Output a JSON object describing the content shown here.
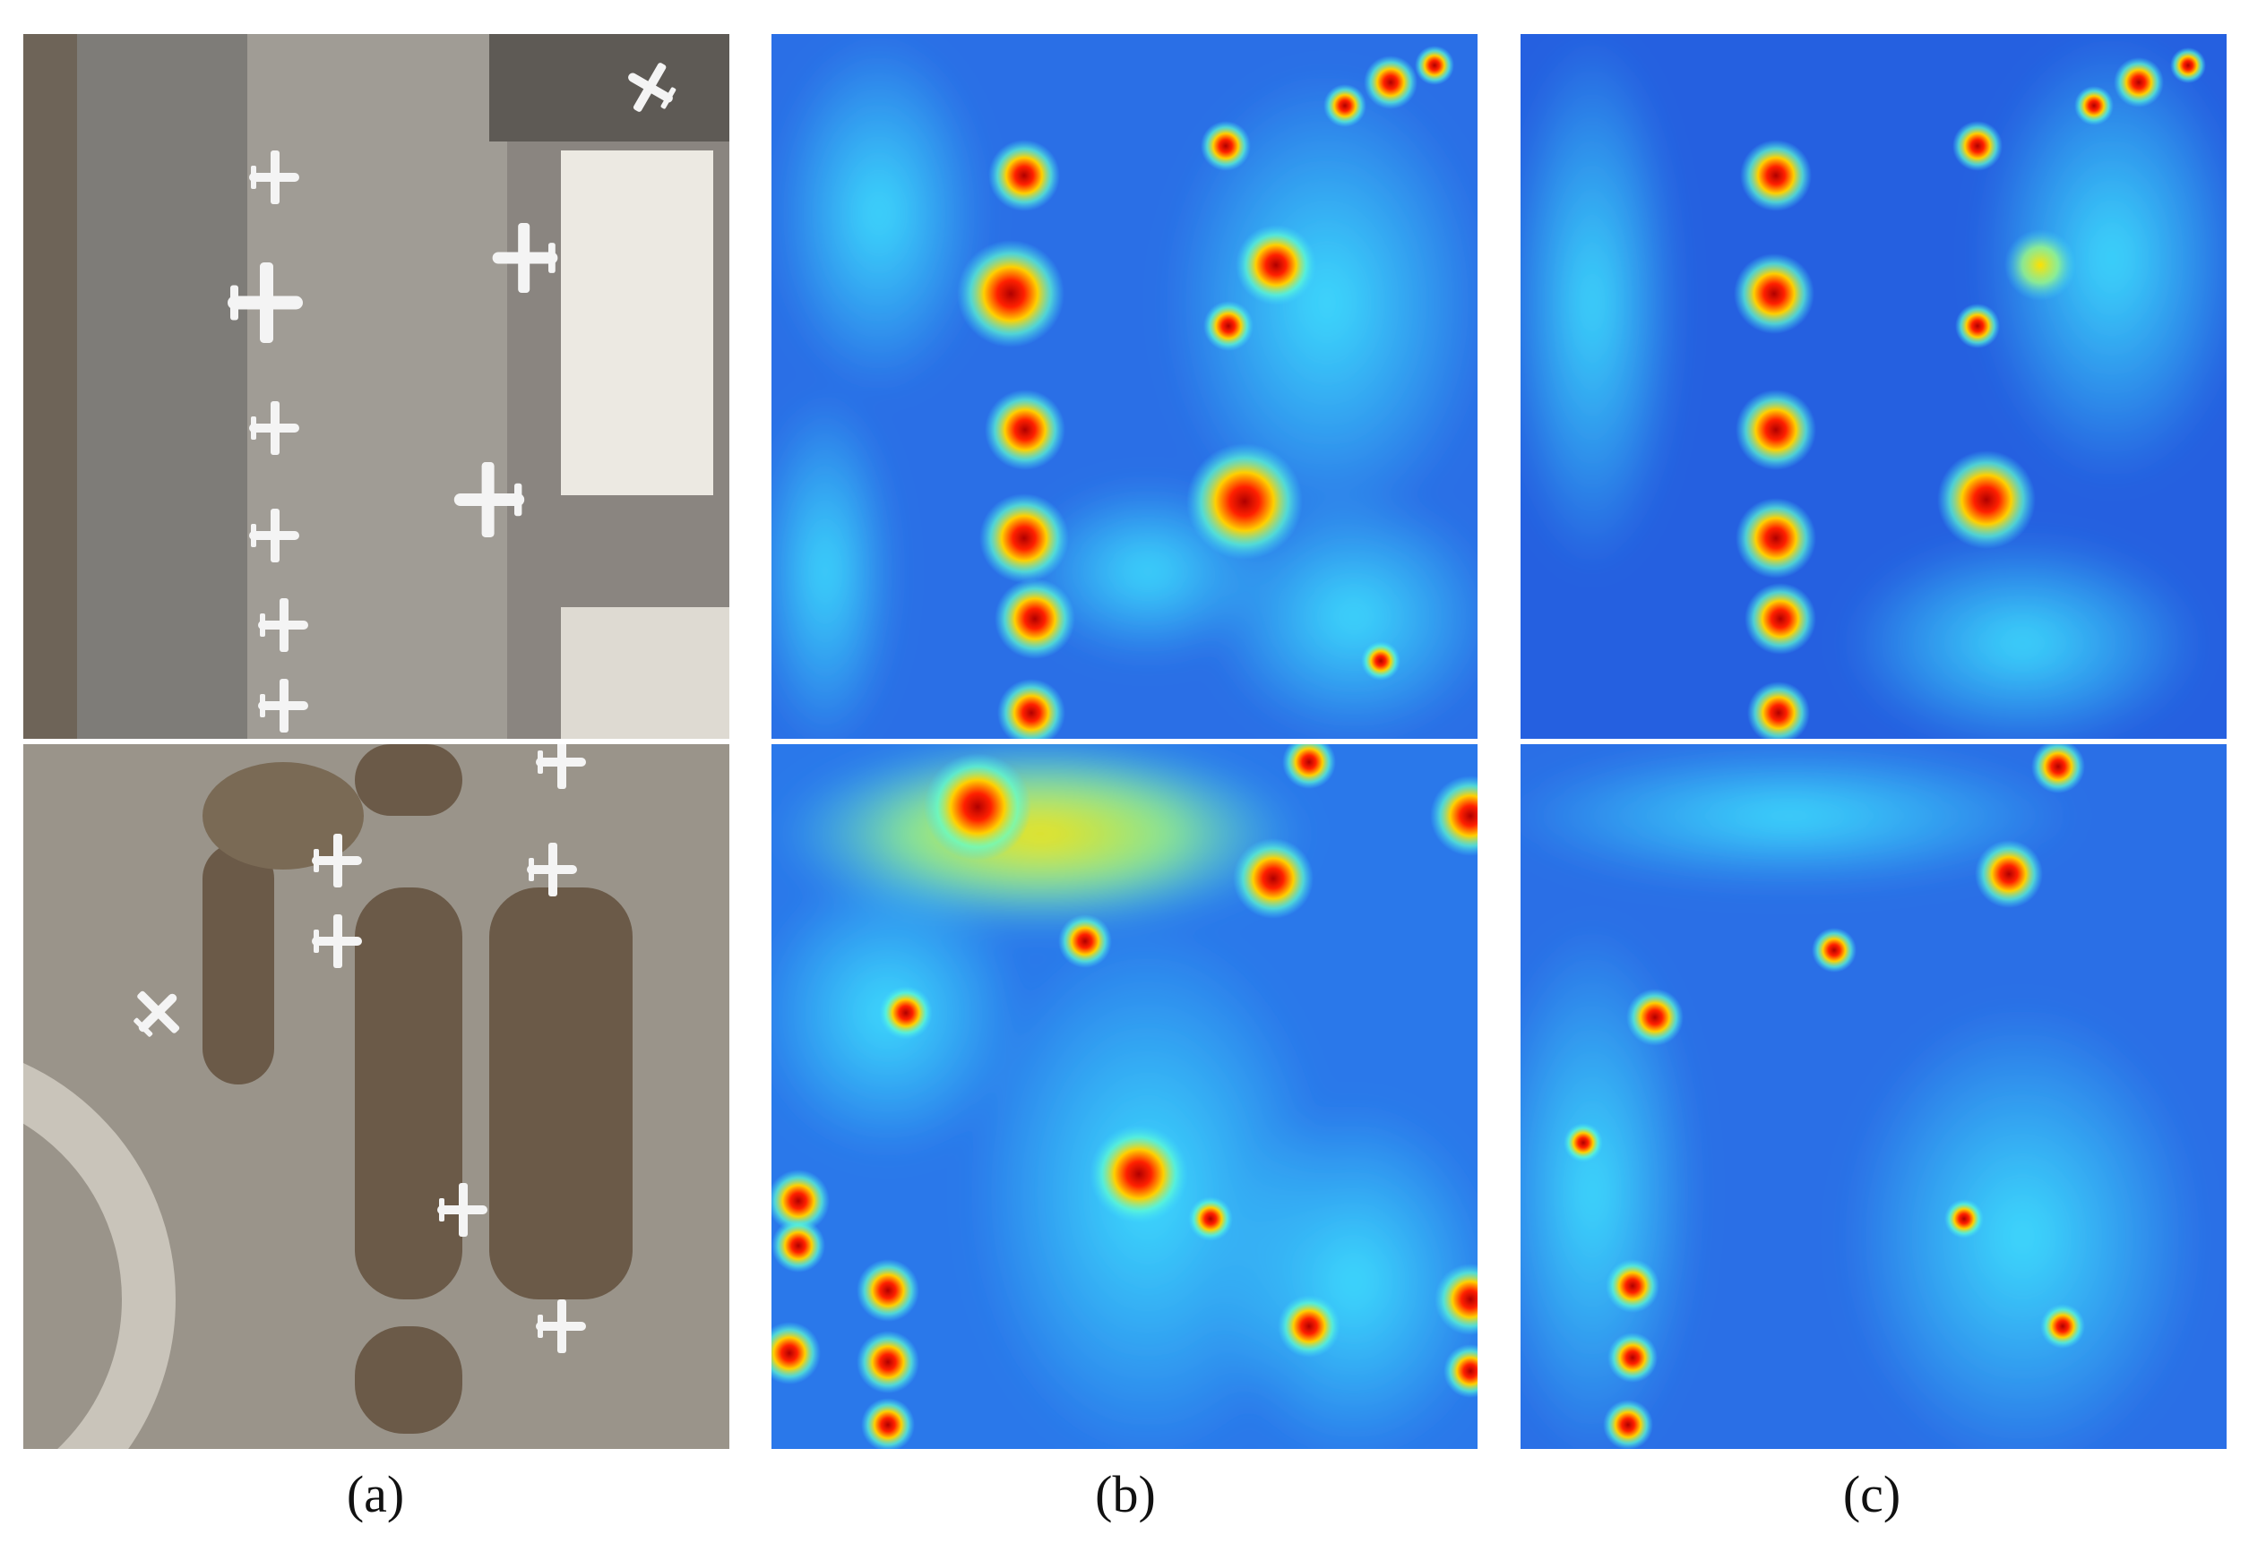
{
  "captions": [
    "(a)",
    "(b)",
    "(c)"
  ]
}
